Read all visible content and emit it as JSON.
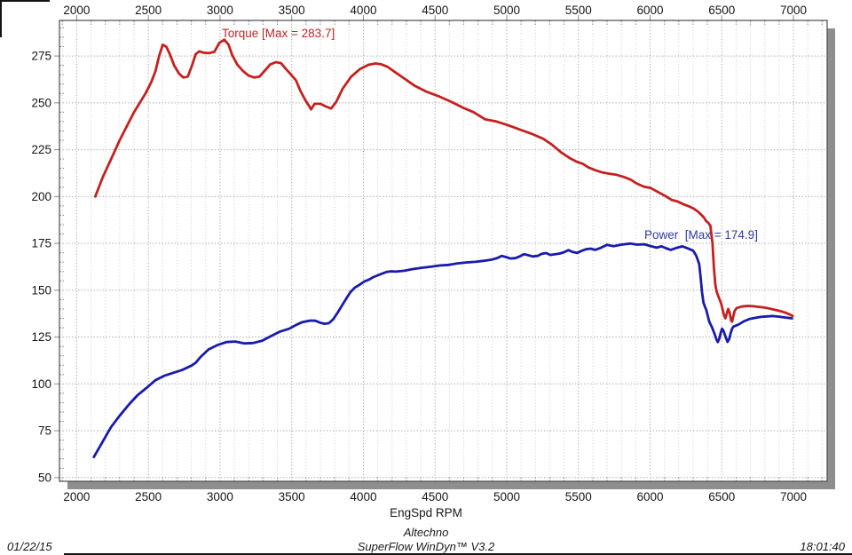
{
  "page": {
    "date": "01/22/15",
    "time": "18:01:40",
    "brand_line1": "Altechno",
    "brand_line2": "SuperFlow WinDyn™ V3.2"
  },
  "chart_data": {
    "type": "line",
    "title": "",
    "xlabel": "EngSpd RPM",
    "ylabel": "",
    "xlim": [
      1880,
      7235
    ],
    "ylim": [
      48,
      294
    ],
    "x_ticks": [
      2000,
      2500,
      3000,
      3500,
      4000,
      4500,
      5000,
      5500,
      6000,
      6500,
      7000
    ],
    "y_ticks": [
      50,
      75,
      100,
      125,
      150,
      175,
      200,
      225,
      250,
      275
    ],
    "x_minor_step": 100,
    "y_minor_step": 5,
    "grid": true,
    "legend_position": "inline-labels",
    "colors": {
      "plot_border": "#4a4a4a",
      "grid_major": "#a3a3a3",
      "grid_minor": "#d6d6d6",
      "tick": "#8a8a8a",
      "shadow": "#8e8e8e",
      "text": "#161616"
    },
    "series": [
      {
        "name": "Torque",
        "label": "Torque [Max = 283.7]",
        "max": 283.7,
        "color": "#c52020",
        "label_color": "#c22525",
        "points": [
          [
            2130,
            200
          ],
          [
            2180,
            210
          ],
          [
            2240,
            220
          ],
          [
            2300,
            230
          ],
          [
            2360,
            239
          ],
          [
            2400,
            245
          ],
          [
            2440,
            250
          ],
          [
            2480,
            255
          ],
          [
            2520,
            261
          ],
          [
            2550,
            267
          ],
          [
            2575,
            275
          ],
          [
            2600,
            281
          ],
          [
            2625,
            280
          ],
          [
            2650,
            276
          ],
          [
            2680,
            270
          ],
          [
            2715,
            265.5
          ],
          [
            2745,
            263.5
          ],
          [
            2775,
            264
          ],
          [
            2805,
            270
          ],
          [
            2830,
            276
          ],
          [
            2855,
            277.5
          ],
          [
            2885,
            276.8
          ],
          [
            2920,
            276.5
          ],
          [
            2960,
            277.2
          ],
          [
            2995,
            282
          ],
          [
            3030,
            283.7
          ],
          [
            3060,
            281
          ],
          [
            3085,
            275.5
          ],
          [
            3120,
            270.5
          ],
          [
            3160,
            267
          ],
          [
            3200,
            264.5
          ],
          [
            3240,
            263.5
          ],
          [
            3275,
            264
          ],
          [
            3310,
            267
          ],
          [
            3350,
            270.5
          ],
          [
            3390,
            271.7
          ],
          [
            3425,
            271.2
          ],
          [
            3455,
            268.5
          ],
          [
            3490,
            265.5
          ],
          [
            3530,
            262
          ],
          [
            3560,
            256.5
          ],
          [
            3595,
            251.5
          ],
          [
            3620,
            248.5
          ],
          [
            3635,
            246.5
          ],
          [
            3660,
            249.5
          ],
          [
            3700,
            249.5
          ],
          [
            3740,
            248
          ],
          [
            3775,
            247
          ],
          [
            3810,
            250.5
          ],
          [
            3855,
            257.5
          ],
          [
            3915,
            264
          ],
          [
            3975,
            268
          ],
          [
            4035,
            270.3
          ],
          [
            4085,
            271
          ],
          [
            4125,
            270.6
          ],
          [
            4165,
            269.4
          ],
          [
            4225,
            266.2
          ],
          [
            4285,
            263
          ],
          [
            4360,
            259
          ],
          [
            4440,
            256
          ],
          [
            4525,
            253.5
          ],
          [
            4605,
            250.8
          ],
          [
            4690,
            247.6
          ],
          [
            4770,
            245
          ],
          [
            4850,
            241.2
          ],
          [
            4930,
            240
          ],
          [
            5010,
            238
          ],
          [
            5090,
            235.8
          ],
          [
            5170,
            233.6
          ],
          [
            5255,
            230.8
          ],
          [
            5315,
            227.7
          ],
          [
            5380,
            223.5
          ],
          [
            5440,
            220.5
          ],
          [
            5490,
            218.5
          ],
          [
            5530,
            217.5
          ],
          [
            5570,
            215.5
          ],
          [
            5620,
            214
          ],
          [
            5670,
            212.8
          ],
          [
            5715,
            212.2
          ],
          [
            5765,
            211.6
          ],
          [
            5815,
            210.5
          ],
          [
            5865,
            209
          ],
          [
            5905,
            207
          ],
          [
            5955,
            205.3
          ],
          [
            6005,
            204.5
          ],
          [
            6050,
            202.6
          ],
          [
            6100,
            200.6
          ],
          [
            6150,
            198.2
          ],
          [
            6190,
            197.4
          ],
          [
            6230,
            196
          ],
          [
            6270,
            194.8
          ],
          [
            6305,
            193.5
          ],
          [
            6335,
            191.9
          ],
          [
            6355,
            190.4
          ],
          [
            6375,
            188.8
          ],
          [
            6390,
            187
          ],
          [
            6405,
            186
          ],
          [
            6420,
            184.5
          ],
          [
            6435,
            175
          ],
          [
            6445,
            162
          ],
          [
            6455,
            153
          ],
          [
            6465,
            149
          ],
          [
            6480,
            146
          ],
          [
            6495,
            143
          ],
          [
            6505,
            140
          ],
          [
            6515,
            136.8
          ],
          [
            6525,
            135
          ],
          [
            6535,
            137.5
          ],
          [
            6545,
            140
          ],
          [
            6555,
            138
          ],
          [
            6565,
            133.8
          ],
          [
            6572,
            133.2
          ],
          [
            6580,
            136
          ],
          [
            6590,
            139
          ],
          [
            6605,
            140.5
          ],
          [
            6640,
            141.3
          ],
          [
            6680,
            141.6
          ],
          [
            6720,
            141.4
          ],
          [
            6760,
            141.1
          ],
          [
            6800,
            140.7
          ],
          [
            6840,
            140.1
          ],
          [
            6880,
            139.4
          ],
          [
            6915,
            138.7
          ],
          [
            6950,
            137.8
          ],
          [
            6975,
            137
          ],
          [
            6995,
            136.2
          ]
        ]
      },
      {
        "name": "Power",
        "label": "Power  [Max = 174.9]",
        "max": 174.9,
        "color": "#1a1aab",
        "label_color": "#2f3ba0",
        "points": [
          [
            2120,
            61
          ],
          [
            2180,
            69
          ],
          [
            2240,
            77
          ],
          [
            2300,
            83
          ],
          [
            2365,
            89
          ],
          [
            2425,
            94
          ],
          [
            2490,
            98
          ],
          [
            2550,
            102
          ],
          [
            2610,
            104.3
          ],
          [
            2670,
            105.8
          ],
          [
            2735,
            107.4
          ],
          [
            2800,
            109.7
          ],
          [
            2830,
            111.3
          ],
          [
            2865,
            114.4
          ],
          [
            2920,
            118.4
          ],
          [
            2985,
            120.8
          ],
          [
            3045,
            122.3
          ],
          [
            3105,
            122.6
          ],
          [
            3170,
            121.6
          ],
          [
            3230,
            121.8
          ],
          [
            3295,
            123.1
          ],
          [
            3355,
            125.5
          ],
          [
            3415,
            127.8
          ],
          [
            3480,
            129.4
          ],
          [
            3540,
            131.8
          ],
          [
            3575,
            133
          ],
          [
            3630,
            133.8
          ],
          [
            3665,
            133.7
          ],
          [
            3700,
            132.6
          ],
          [
            3730,
            132.1
          ],
          [
            3760,
            132.4
          ],
          [
            3790,
            134.5
          ],
          [
            3820,
            138
          ],
          [
            3880,
            145.5
          ],
          [
            3910,
            149
          ],
          [
            3940,
            151.4
          ],
          [
            3975,
            153
          ],
          [
            4005,
            154.6
          ],
          [
            4040,
            155.7
          ],
          [
            4070,
            157
          ],
          [
            4130,
            158.8
          ],
          [
            4165,
            159.8
          ],
          [
            4195,
            160.1
          ],
          [
            4225,
            159.9
          ],
          [
            4285,
            160.4
          ],
          [
            4345,
            161.3
          ],
          [
            4410,
            162
          ],
          [
            4470,
            162.5
          ],
          [
            4530,
            163.2
          ],
          [
            4595,
            163.5
          ],
          [
            4655,
            164.3
          ],
          [
            4715,
            164.8
          ],
          [
            4780,
            165.1
          ],
          [
            4840,
            165.7
          ],
          [
            4900,
            166.4
          ],
          [
            4935,
            167.2
          ],
          [
            4965,
            168.3
          ],
          [
            4995,
            167.7
          ],
          [
            5025,
            166.9
          ],
          [
            5060,
            167.1
          ],
          [
            5090,
            168
          ],
          [
            5120,
            169.2
          ],
          [
            5150,
            168.7
          ],
          [
            5180,
            168
          ],
          [
            5215,
            168.3
          ],
          [
            5245,
            169.5
          ],
          [
            5275,
            169.8
          ],
          [
            5305,
            168.8
          ],
          [
            5340,
            169.2
          ],
          [
            5370,
            169.6
          ],
          [
            5400,
            170.3
          ],
          [
            5430,
            171.4
          ],
          [
            5460,
            170.4
          ],
          [
            5490,
            169.9
          ],
          [
            5525,
            171.1
          ],
          [
            5555,
            171.9
          ],
          [
            5585,
            172.2
          ],
          [
            5615,
            171.5
          ],
          [
            5650,
            172.4
          ],
          [
            5700,
            174.2
          ],
          [
            5745,
            173.5
          ],
          [
            5800,
            174.3
          ],
          [
            5860,
            174.9
          ],
          [
            5910,
            174.3
          ],
          [
            5960,
            174.5
          ],
          [
            6005,
            173.5
          ],
          [
            6045,
            172.7
          ],
          [
            6080,
            173.4
          ],
          [
            6110,
            172.4
          ],
          [
            6145,
            171.5
          ],
          [
            6185,
            172.6
          ],
          [
            6225,
            173.4
          ],
          [
            6265,
            172.3
          ],
          [
            6300,
            171.1
          ],
          [
            6320,
            168.7
          ],
          [
            6332,
            166.3
          ],
          [
            6342,
            164
          ],
          [
            6352,
            157
          ],
          [
            6362,
            149
          ],
          [
            6372,
            143.5
          ],
          [
            6382,
            141.3
          ],
          [
            6392,
            139.5
          ],
          [
            6402,
            136.5
          ],
          [
            6412,
            133.3
          ],
          [
            6422,
            131.7
          ],
          [
            6432,
            130.2
          ],
          [
            6452,
            126.2
          ],
          [
            6462,
            123.9
          ],
          [
            6472,
            122.3
          ],
          [
            6482,
            124
          ],
          [
            6492,
            127.1
          ],
          [
            6502,
            129.5
          ],
          [
            6512,
            128.3
          ],
          [
            6527,
            125
          ],
          [
            6540,
            122.4
          ],
          [
            6552,
            124
          ],
          [
            6562,
            127.1
          ],
          [
            6572,
            129.5
          ],
          [
            6582,
            130.6
          ],
          [
            6602,
            131.2
          ],
          [
            6622,
            131.9
          ],
          [
            6652,
            133.3
          ],
          [
            6692,
            134.6
          ],
          [
            6732,
            135.2
          ],
          [
            6775,
            135.8
          ],
          [
            6815,
            136
          ],
          [
            6855,
            136.2
          ],
          [
            6900,
            135.9
          ],
          [
            6945,
            135.4
          ],
          [
            6990,
            135
          ]
        ]
      }
    ]
  }
}
